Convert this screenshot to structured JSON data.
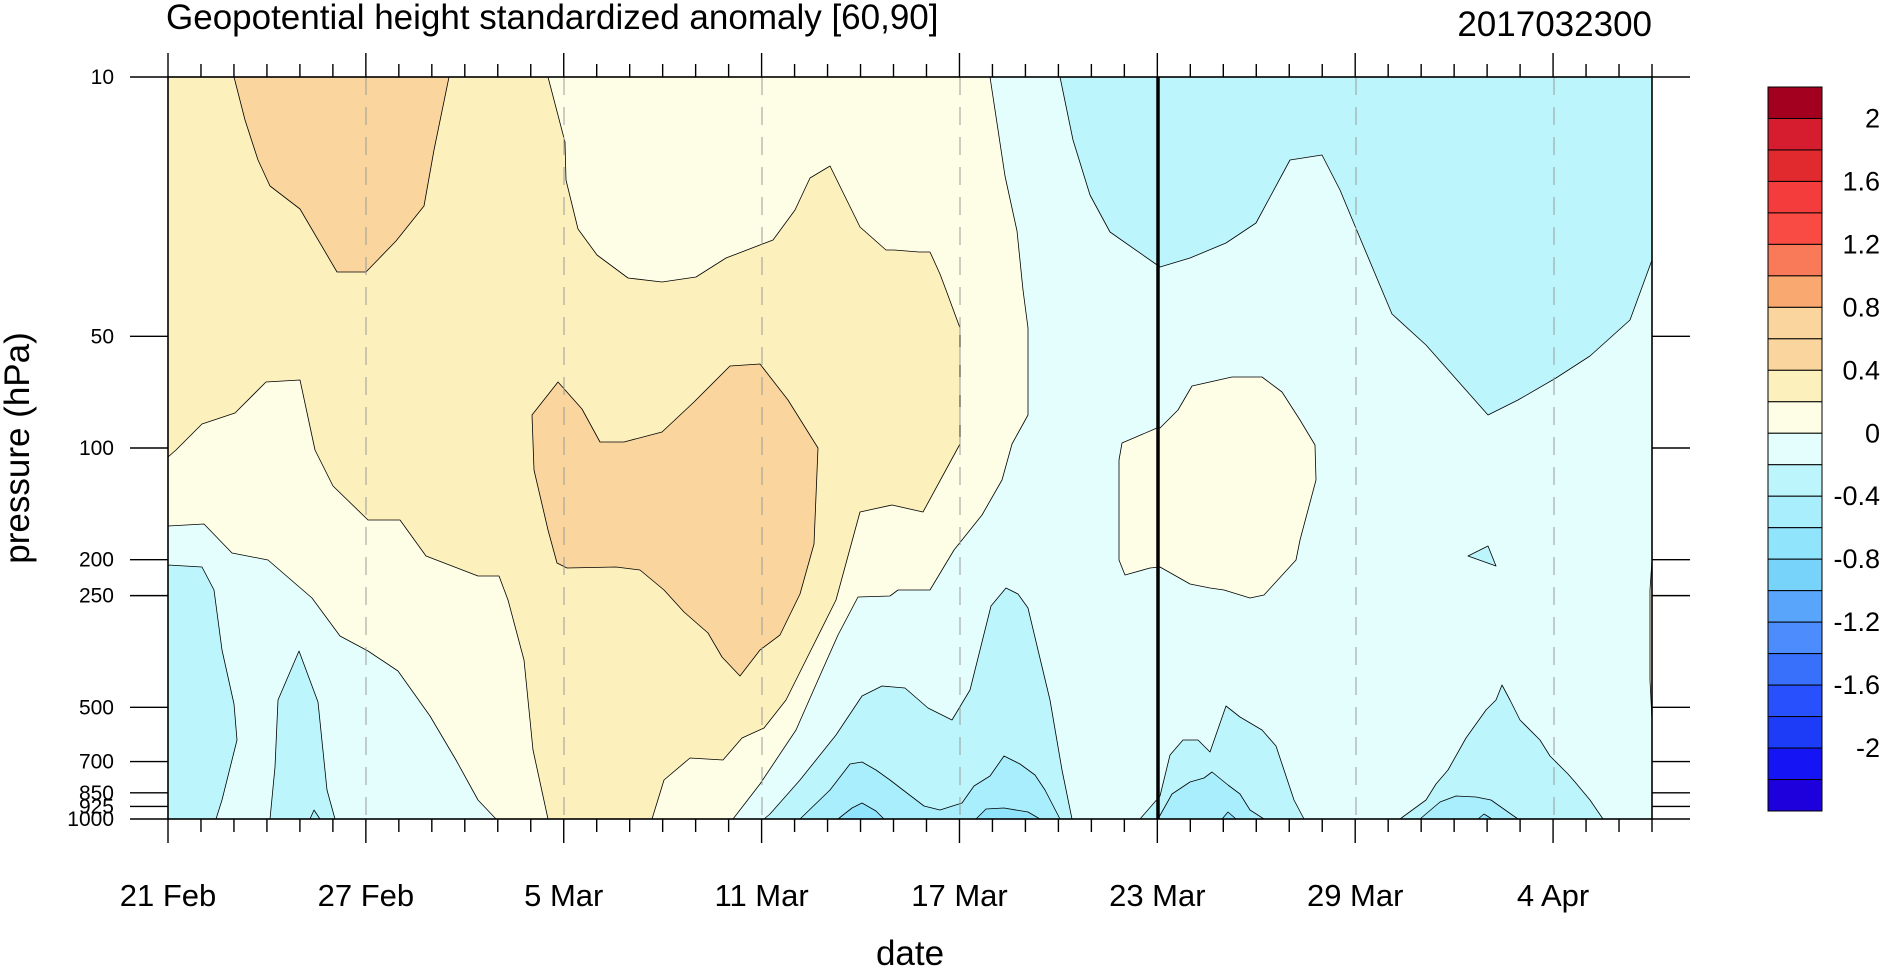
{
  "chart_data": {
    "type": "contour",
    "title": "Geopotential height standardized anomaly [60,90]",
    "date_label": "2017032300",
    "xlabel": "date",
    "ylabel": "pressure (hPa)",
    "x_ticks": [
      "21 Feb",
      "27 Feb",
      "5 Mar",
      "11 Mar",
      "17 Mar",
      "23 Mar",
      "29 Mar",
      "4 Apr"
    ],
    "x_range": [
      "21 Feb",
      "6 Apr"
    ],
    "y_scale": "log",
    "y_range": [
      1000,
      10
    ],
    "y_ticks": [
      10,
      50,
      100,
      200,
      250,
      500,
      700,
      850,
      925,
      1000
    ],
    "y_tick_labels": [
      "10",
      "50",
      "100",
      "200",
      "250",
      "500",
      "700",
      "850",
      "925",
      "1000"
    ],
    "reference_line_date": "23 Mar",
    "colorbar": {
      "levels": [
        -2.2,
        -2,
        -1.8,
        -1.6,
        -1.4,
        -1.2,
        -1,
        -0.8,
        -0.6,
        -0.4,
        -0.2,
        0,
        0.2,
        0.4,
        0.6,
        0.8,
        1,
        1.2,
        1.4,
        1.6,
        1.8,
        2,
        2.2
      ],
      "colors": [
        "#1d00dc",
        "#1414f4",
        "#1c3cf8",
        "#2850fc",
        "#3870fc",
        "#4c8cfc",
        "#5aa5fc",
        "#78d3fa",
        "#90e4fc",
        "#a8eefc",
        "#bcf6fc",
        "#e4fefe",
        "#fefee6",
        "#fcf0bc",
        "#fad59e",
        "#fad59e",
        "#f9a870",
        "#f97a58",
        "#f94a43",
        "#f53c3c",
        "#e02a2e",
        "#d61d30",
        "#a3001f"
      ],
      "labels": [
        "2",
        "1.6",
        "1.2",
        "0.8",
        "0.4",
        "0",
        "-0.4",
        "-0.8",
        "-1.2",
        "-1.6",
        "-2"
      ]
    }
  }
}
